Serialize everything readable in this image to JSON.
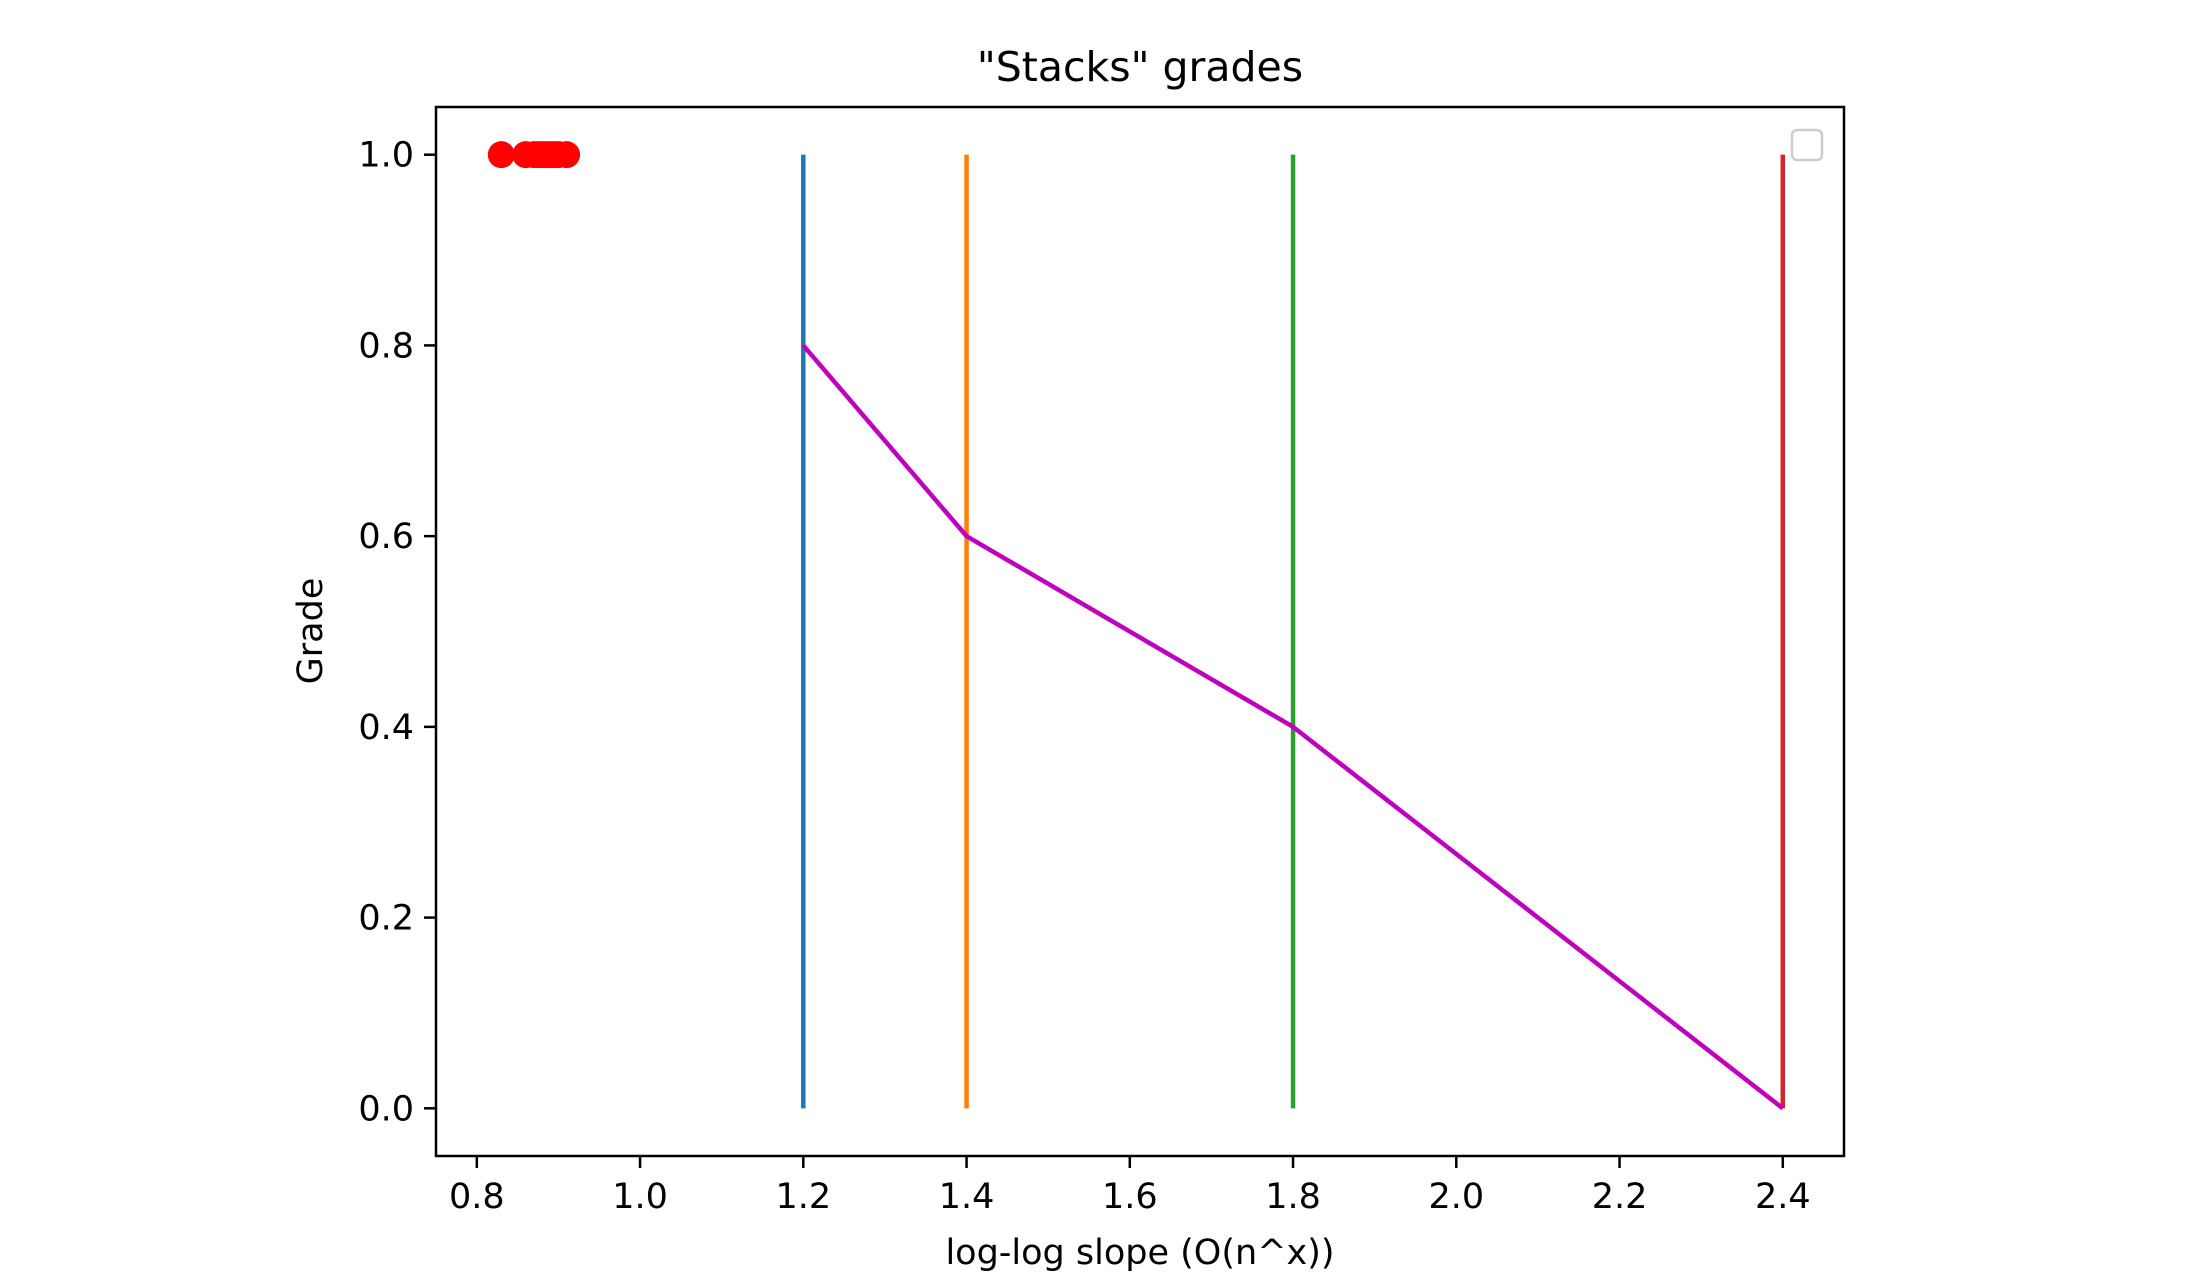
{
  "chart_data": {
    "type": "line",
    "title": "\"Stacks\" grades",
    "xlabel": "log-log slope (O(n^x))",
    "ylabel": "Grade",
    "xlim": [
      0.75,
      2.475
    ],
    "ylim": [
      -0.05,
      1.05
    ],
    "x_ticks": [
      0.8,
      1.0,
      1.2,
      1.4,
      1.6,
      1.8,
      2.0,
      2.2,
      2.4
    ],
    "x_tick_labels": [
      "0.8",
      "1.0",
      "1.2",
      "1.4",
      "1.6",
      "1.8",
      "2.0",
      "2.2",
      "2.4"
    ],
    "y_ticks": [
      0.0,
      0.2,
      0.4,
      0.6,
      0.8,
      1.0
    ],
    "y_tick_labels": [
      "0.0",
      "0.2",
      "0.4",
      "0.6",
      "0.8",
      "1.0"
    ],
    "grid": false,
    "legend": {
      "location": "top-right",
      "entries": []
    },
    "vertical_lines": [
      {
        "x": 1.2,
        "y_range": [
          0.0,
          1.0
        ],
        "color": "#1f77b4"
      },
      {
        "x": 1.4,
        "y_range": [
          0.0,
          1.0
        ],
        "color": "#ff7f0e"
      },
      {
        "x": 1.8,
        "y_range": [
          0.0,
          1.0
        ],
        "color": "#2ca02c"
      },
      {
        "x": 2.4,
        "y_range": [
          0.0,
          1.0
        ],
        "color": "#d62728"
      }
    ],
    "series": [
      {
        "type": "line",
        "color": "#bf00bf",
        "points": [
          {
            "x": 1.2,
            "y": 0.8
          },
          {
            "x": 1.4,
            "y": 0.6
          },
          {
            "x": 1.8,
            "y": 0.4
          },
          {
            "x": 2.4,
            "y": 0.0
          }
        ]
      },
      {
        "type": "scatter",
        "color": "#ff0000",
        "points": [
          {
            "x": 0.83,
            "y": 1.0
          },
          {
            "x": 0.86,
            "y": 1.0
          },
          {
            "x": 0.87,
            "y": 1.0
          },
          {
            "x": 0.875,
            "y": 1.0
          },
          {
            "x": 0.88,
            "y": 1.0
          },
          {
            "x": 0.885,
            "y": 1.0
          },
          {
            "x": 0.89,
            "y": 1.0
          },
          {
            "x": 0.895,
            "y": 1.0
          },
          {
            "x": 0.9,
            "y": 1.0
          },
          {
            "x": 0.91,
            "y": 1.0
          }
        ]
      }
    ]
  }
}
